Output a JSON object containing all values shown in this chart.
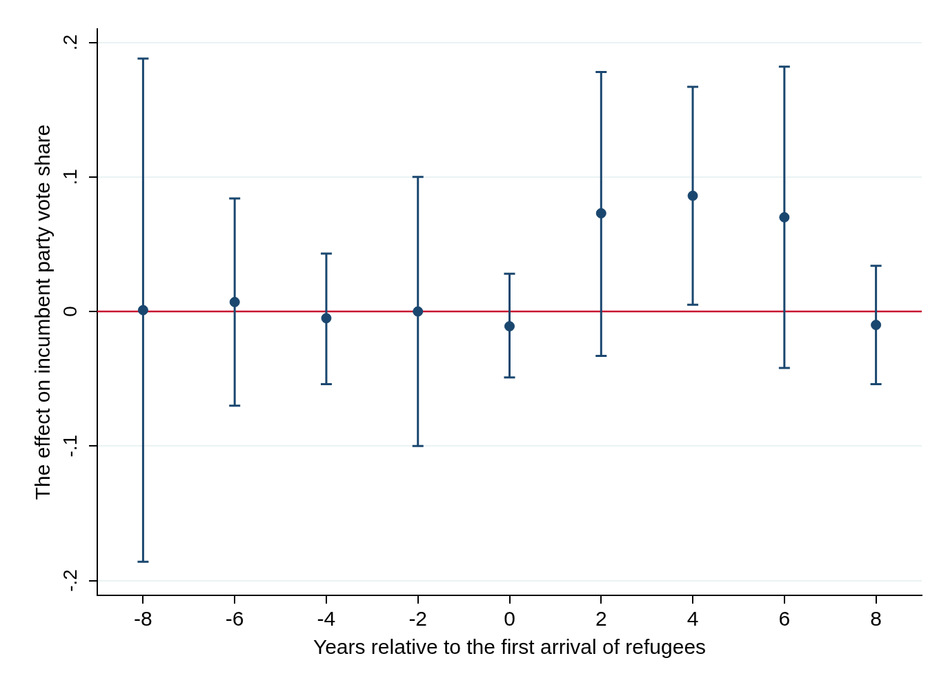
{
  "chart_data": {
    "type": "scatter",
    "xlabel": "Years relative to the first arrival of refugees",
    "ylabel": "The effect on incumbent party vote share",
    "x": [
      -8,
      -6,
      -4,
      -2,
      0,
      2,
      4,
      6,
      8
    ],
    "series": [
      {
        "color": "#1a476f",
        "values": [
          0.001,
          0.007,
          -0.005,
          0.0,
          -0.011,
          0.073,
          0.086,
          0.07,
          -0.01
        ],
        "errors": [
          [
            -0.186,
            0.188
          ],
          [
            -0.07,
            0.084
          ],
          [
            -0.054,
            0.043
          ],
          [
            -0.1,
            0.1
          ],
          [
            -0.049,
            0.028
          ],
          [
            -0.033,
            0.178
          ],
          [
            0.005,
            0.167
          ],
          [
            -0.042,
            0.182
          ],
          [
            -0.054,
            0.034
          ]
        ]
      }
    ],
    "xlim": [
      -9,
      9
    ],
    "xticks": [
      -8,
      -6,
      -4,
      -2,
      0,
      2,
      4,
      6,
      8
    ],
    "ylim": [
      -0.211,
      0.21
    ],
    "yticks": [
      {
        "value": -0.2,
        "label": "-.2"
      },
      {
        "value": -0.1,
        "label": "-.1"
      },
      0,
      {
        "value": 0.1,
        "label": ".1"
      },
      {
        "value": 0.2,
        "label": ".2"
      }
    ],
    "ref_lines": [
      {
        "axis": "y",
        "value": 0,
        "color": "#c8102e"
      }
    ],
    "grid": "y",
    "marker": "circle",
    "legend": false
  }
}
